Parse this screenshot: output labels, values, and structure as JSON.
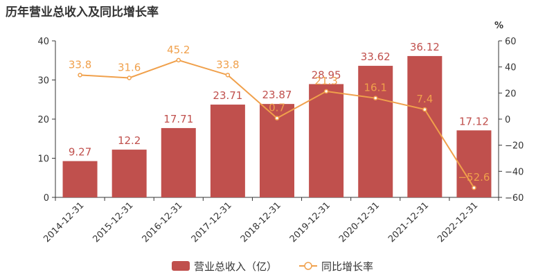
{
  "title": "历年营业总收入及同比增长率",
  "colors": {
    "bar": "#c0504d",
    "line": "#f0a04b",
    "axis": "#333333",
    "grid": "#dddddd"
  },
  "chart_data": {
    "type": "bar",
    "categories": [
      "2014-12-31",
      "2015-12-31",
      "2016-12-31",
      "2017-12-31",
      "2018-12-31",
      "2019-12-31",
      "2020-12-31",
      "2021-12-31",
      "2022-12-31"
    ],
    "series": [
      {
        "name": "营业总收入（亿）",
        "type": "bar",
        "axis": "left",
        "values": [
          9.27,
          12.2,
          17.71,
          23.71,
          23.87,
          28.95,
          33.62,
          36.12,
          17.12
        ]
      },
      {
        "name": "同比增长率",
        "type": "line",
        "axis": "right",
        "values": [
          33.8,
          31.6,
          45.2,
          33.8,
          0.7,
          21.3,
          16.1,
          7.4,
          -52.6
        ]
      }
    ],
    "left_axis": {
      "min": 0,
      "max": 40,
      "ticks": [
        "0",
        "10",
        "20",
        "30",
        "40"
      ]
    },
    "right_axis": {
      "label": "%",
      "min": -60,
      "max": 60,
      "ticks": [
        "−60",
        "−40",
        "−20",
        "0",
        "20",
        "40",
        "60"
      ]
    },
    "bar_labels": [
      "9.27",
      "12.2",
      "17.71",
      "23.71",
      "23.87",
      "28.95",
      "33.62",
      "36.12",
      "17.12"
    ],
    "line_labels": [
      "33.8",
      "31.6",
      "45.2",
      "33.8",
      "0.7",
      "21.3",
      "16.1",
      "7.4",
      "−52.6"
    ],
    "grid": false,
    "legend_position": "bottom-center"
  }
}
